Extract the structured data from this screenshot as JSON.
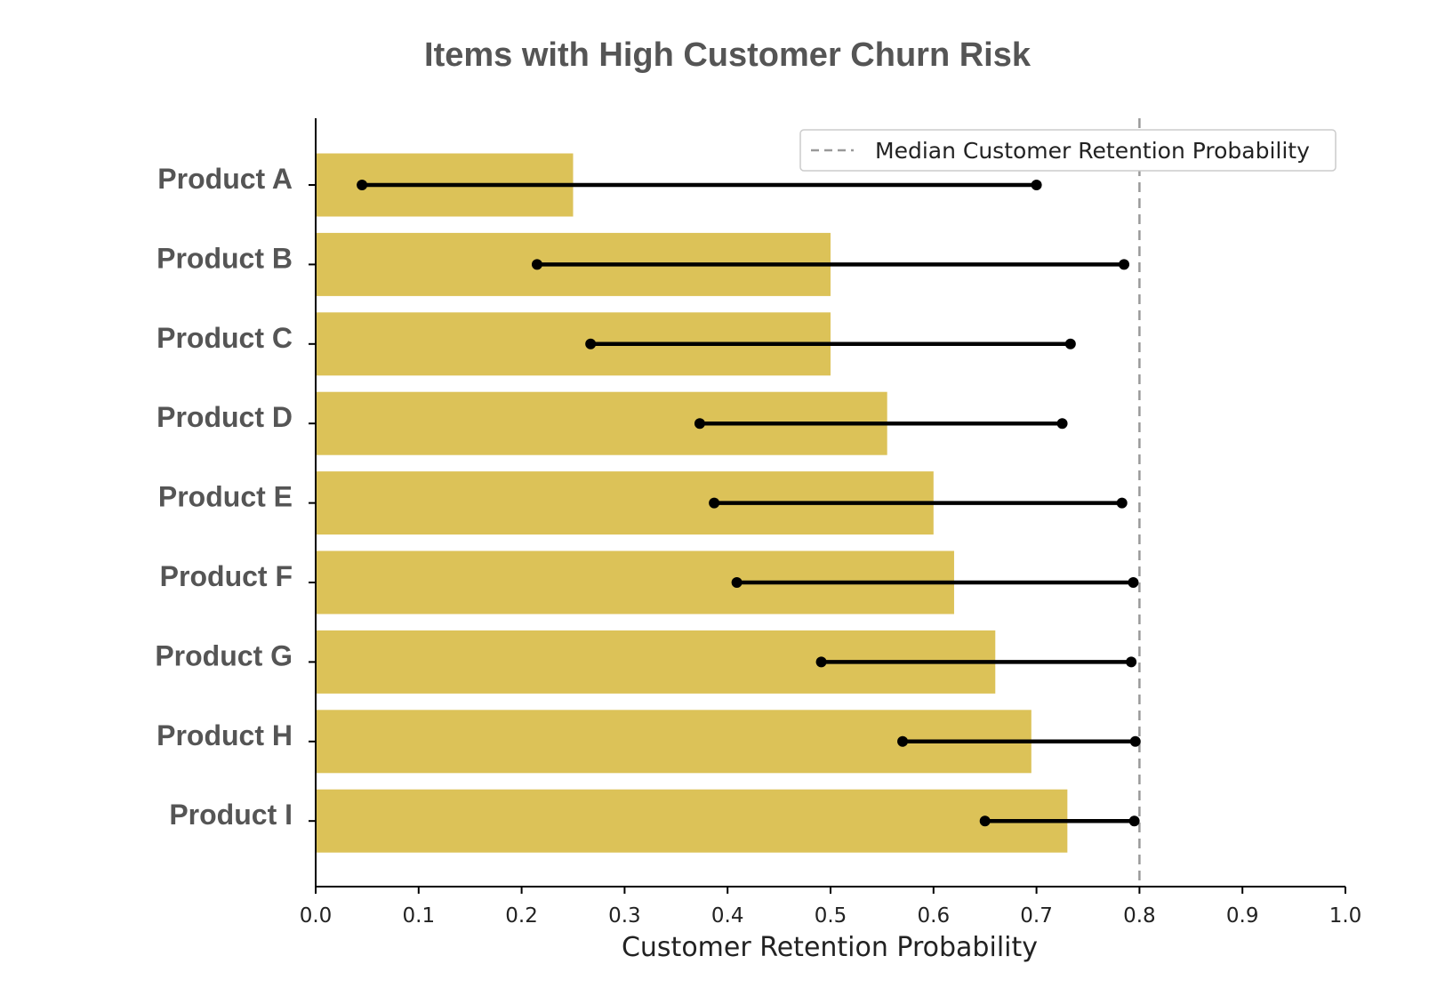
{
  "chart_data": {
    "type": "bar",
    "orientation": "horizontal",
    "title": "Items with High Customer Churn Risk",
    "xlabel": "Customer Retention Probability",
    "ylabel": "",
    "xlim": [
      0.0,
      1.0
    ],
    "xticks": [
      "0.0",
      "0.1",
      "0.2",
      "0.3",
      "0.4",
      "0.5",
      "0.6",
      "0.7",
      "0.8",
      "0.9",
      "1.0"
    ],
    "categories": [
      "Product A",
      "Product B",
      "Product C",
      "Product D",
      "Product E",
      "Product F",
      "Product G",
      "Product H",
      "Product I"
    ],
    "values": [
      0.25,
      0.5,
      0.5,
      0.555,
      0.6,
      0.62,
      0.66,
      0.695,
      0.73
    ],
    "ranges": [
      [
        0.045,
        0.7
      ],
      [
        0.215,
        0.785
      ],
      [
        0.267,
        0.733
      ],
      [
        0.373,
        0.725
      ],
      [
        0.387,
        0.783
      ],
      [
        0.409,
        0.794
      ],
      [
        0.491,
        0.792
      ],
      [
        0.57,
        0.796
      ],
      [
        0.65,
        0.795
      ]
    ],
    "reference_line": {
      "value": 0.8,
      "label": "Median Customer Retention Probability"
    },
    "legend": "top-right",
    "grid": false,
    "colors": {
      "bar": "#DCC258",
      "range": "#000000",
      "reference": "#999999",
      "title": "#555555"
    }
  }
}
